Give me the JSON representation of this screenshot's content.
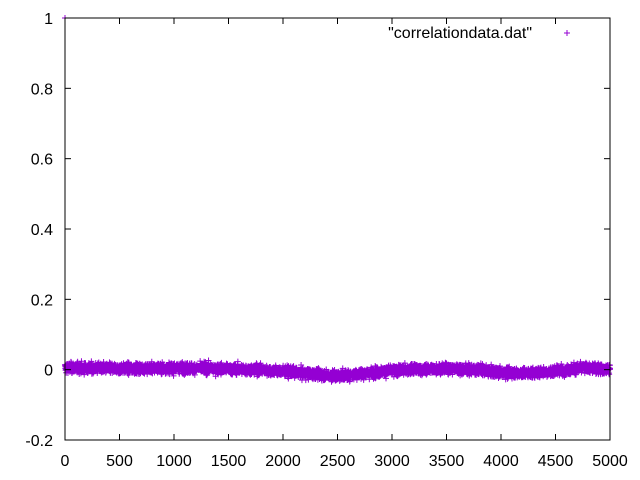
{
  "chart_data": {
    "type": "scatter",
    "title": "",
    "xlabel": "",
    "ylabel": "",
    "xlim": [
      0,
      5000
    ],
    "ylim": [
      -0.2,
      1
    ],
    "xticks": [
      "0",
      "500",
      "1000",
      "1500",
      "2000",
      "2500",
      "3000",
      "3500",
      "4000",
      "4500",
      "5000"
    ],
    "yticks": [
      "-0.2",
      "0",
      "0.2",
      "0.4",
      "0.6",
      "0.8",
      "1"
    ],
    "grid": false,
    "legend_position": "top-right",
    "marker": "plus",
    "color": "#9400d3",
    "series": [
      {
        "name": "\"correlationdata.dat\"",
        "points": [
          [
            0,
            1.0
          ]
        ],
        "trend": [
          [
            0,
            0.005
          ],
          [
            250,
            0.004
          ],
          [
            500,
            0.003
          ],
          [
            750,
            0.004
          ],
          [
            1000,
            0.005
          ],
          [
            1250,
            0.004
          ],
          [
            1500,
            0.002
          ],
          [
            1750,
            0.0
          ],
          [
            2000,
            -0.005
          ],
          [
            2250,
            -0.012
          ],
          [
            2500,
            -0.018
          ],
          [
            2750,
            -0.01
          ],
          [
            3000,
            -0.003
          ],
          [
            3250,
            0.001
          ],
          [
            3500,
            0.003
          ],
          [
            3750,
            0.001
          ],
          [
            4000,
            -0.008
          ],
          [
            4250,
            -0.01
          ],
          [
            4500,
            -0.004
          ],
          [
            4750,
            0.005
          ],
          [
            5000,
            0.002
          ]
        ],
        "noise_amplitude": 0.022,
        "count": 5000
      }
    ]
  }
}
